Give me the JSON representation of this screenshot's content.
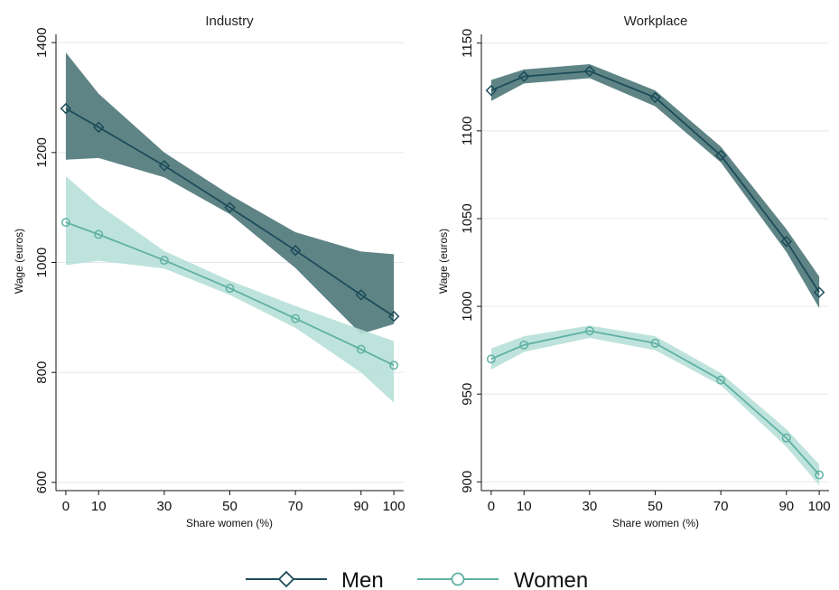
{
  "chart_data": [
    {
      "type": "line",
      "title": "Industry",
      "xlabel": "Share women (%)",
      "ylabel": "Wage (euros)",
      "x": [
        0,
        10,
        30,
        50,
        70,
        90,
        100
      ],
      "xticks": [
        0,
        10,
        30,
        50,
        70,
        90,
        100
      ],
      "yticks": [
        600,
        800,
        1000,
        1200,
        1400
      ],
      "xlim": [
        -3,
        103
      ],
      "ylim": [
        585,
        1415
      ],
      "grid": true,
      "series": [
        {
          "name": "Men",
          "color": "#1c4c5a",
          "band_color": "#5f8486",
          "marker": "diamond",
          "values": [
            1280,
            1246,
            1176,
            1100,
            1022,
            941,
            902
          ],
          "ci_lower": [
            1187,
            1190,
            1155,
            1088,
            990,
            870,
            888
          ],
          "ci_upper": [
            1382,
            1307,
            1200,
            1123,
            1055,
            1020,
            1015
          ]
        },
        {
          "name": "Women",
          "color": "#5fb1a3",
          "band_color": "#b7e0d8",
          "marker": "circle",
          "values": [
            1073,
            1051,
            1004,
            953,
            898,
            842,
            813
          ],
          "ci_lower": [
            995,
            1003,
            989,
            941,
            881,
            800,
            745
          ],
          "ci_upper": [
            1157,
            1105,
            1021,
            967,
            921,
            878,
            857
          ]
        }
      ]
    },
    {
      "type": "line",
      "title": "Workplace",
      "xlabel": "Share women (%)",
      "ylabel": "Wage (euros)",
      "x": [
        0,
        10,
        30,
        50,
        70,
        90,
        100
      ],
      "xticks": [
        0,
        10,
        30,
        50,
        70,
        90,
        100
      ],
      "yticks": [
        900,
        950,
        1000,
        1050,
        1100,
        1150
      ],
      "xlim": [
        -3,
        103
      ],
      "ylim": [
        895,
        1155
      ],
      "grid": true,
      "series": [
        {
          "name": "Men",
          "color": "#1c4c5a",
          "band_color": "#5f8486",
          "marker": "diamond",
          "values": [
            1123,
            1131,
            1134,
            1119,
            1086,
            1037,
            1008
          ],
          "ci_lower": [
            1117,
            1127,
            1130,
            1114,
            1082,
            1031,
            999
          ],
          "ci_upper": [
            1129,
            1135,
            1138,
            1123,
            1091,
            1044,
            1017
          ]
        },
        {
          "name": "Women",
          "color": "#5fb1a3",
          "band_color": "#b7e0d8",
          "marker": "circle",
          "values": [
            970,
            978,
            986,
            979,
            958,
            925,
            904
          ],
          "ci_lower": [
            964,
            974,
            982,
            975,
            955,
            920,
            898
          ],
          "ci_upper": [
            976,
            983,
            989,
            983,
            962,
            930,
            910
          ]
        }
      ]
    }
  ],
  "legend": {
    "placement": "bottom-center",
    "items": [
      {
        "label": "Men",
        "color": "#1c4c5a",
        "marker": "diamond"
      },
      {
        "label": "Women",
        "color": "#5fb1a3",
        "marker": "circle"
      }
    ]
  }
}
